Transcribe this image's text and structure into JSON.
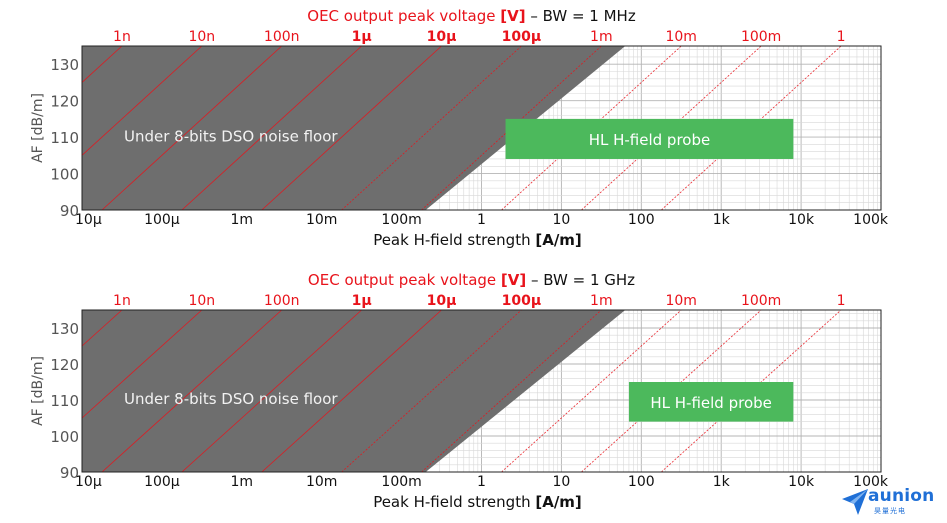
{
  "colors": {
    "red": "#e8131b",
    "black": "#111111",
    "noise_fill": "#6e6e6e",
    "probe_fill": "#4cb95c",
    "grid_minor": "#d8d8d8",
    "grid_major": "#b4b4b4",
    "logo_blue": "#1f6fd6"
  },
  "logo": {
    "icon": "plane-arrow-icon",
    "text": "aunion",
    "subtext": "昊量光电"
  },
  "chart_data": [
    {
      "type": "line",
      "title_prefix": "OEC output peak voltage ",
      "title_unit": "[V]",
      "title_suffix": " – BW = 1 MHz",
      "bandwidth_hz": 1000000,
      "xlabel_prefix": "Peak H-field strength ",
      "xlabel_unit": "[A/m]",
      "ylabel": "AF [dB/m]",
      "xscale": "log",
      "xlim": [
        1e-05,
        100000
      ],
      "ylim": [
        90,
        135
      ],
      "x_tick_labels": [
        "10μ",
        "100μ",
        "1m",
        "10m",
        "100m",
        "1",
        "10",
        "100",
        "1k",
        "10k",
        "100k"
      ],
      "y_ticks": [
        90,
        100,
        110,
        120,
        130
      ],
      "top_axis_labels": [
        "1n",
        "10n",
        "100n",
        "1μ",
        "10μ",
        "100μ",
        "1m",
        "10m",
        "100m",
        "1"
      ],
      "top_axis_x": [
        3.16e-05,
        0.000316,
        0.00316,
        0.0316,
        0.316,
        3.16,
        31.6,
        316,
        3160,
        31600
      ],
      "top_axis_y": 135,
      "voltage_lines_decades": [
        -13,
        -12,
        -11,
        -10,
        -9,
        -8,
        -7,
        -6,
        -5,
        -4,
        -3,
        -2,
        -1,
        0
      ],
      "noise_floor_region": {
        "label": "Under 8-bits DSO noise floor",
        "boundary": [
          [
            0.2,
            90
          ],
          [
            63,
            135
          ]
        ]
      },
      "probe_region": {
        "label": "HL H-field probe",
        "x_range": [
          2,
          8000
        ],
        "y_range": [
          104,
          115
        ]
      },
      "grid": true
    },
    {
      "type": "line",
      "title_prefix": "OEC output peak voltage ",
      "title_unit": "[V]",
      "title_suffix": " – BW = 1 GHz",
      "bandwidth_hz": 1000000000,
      "xlabel_prefix": "Peak H-field strength ",
      "xlabel_unit": "[A/m]",
      "ylabel": "AF [dB/m]",
      "xscale": "log",
      "xlim": [
        1e-05,
        100000
      ],
      "ylim": [
        90,
        135
      ],
      "x_tick_labels": [
        "10μ",
        "100μ",
        "1m",
        "10m",
        "100m",
        "1",
        "10",
        "100",
        "1k",
        "10k",
        "100k"
      ],
      "y_ticks": [
        90,
        100,
        110,
        120,
        130
      ],
      "top_axis_labels": [
        "1n",
        "10n",
        "100n",
        "1μ",
        "10μ",
        "100μ",
        "1m",
        "10m",
        "100m",
        "1"
      ],
      "top_axis_x": [
        3.16e-05,
        0.000316,
        0.00316,
        0.0316,
        0.316,
        3.16,
        31.6,
        316,
        3160,
        31600
      ],
      "top_axis_y": 135,
      "voltage_lines_decades": [
        -13,
        -12,
        -11,
        -10,
        -9,
        -8,
        -7,
        -6,
        -5,
        -4,
        -3,
        -2,
        -1,
        0
      ],
      "noise_floor_region": {
        "label": "Under 8-bits DSO noise floor",
        "boundary": [
          [
            0.2,
            90
          ],
          [
            63,
            135
          ]
        ]
      },
      "probe_region": {
        "label": "HL H-field probe",
        "x_range": [
          70,
          8000
        ],
        "y_range": [
          104,
          115
        ]
      },
      "grid": true
    }
  ]
}
